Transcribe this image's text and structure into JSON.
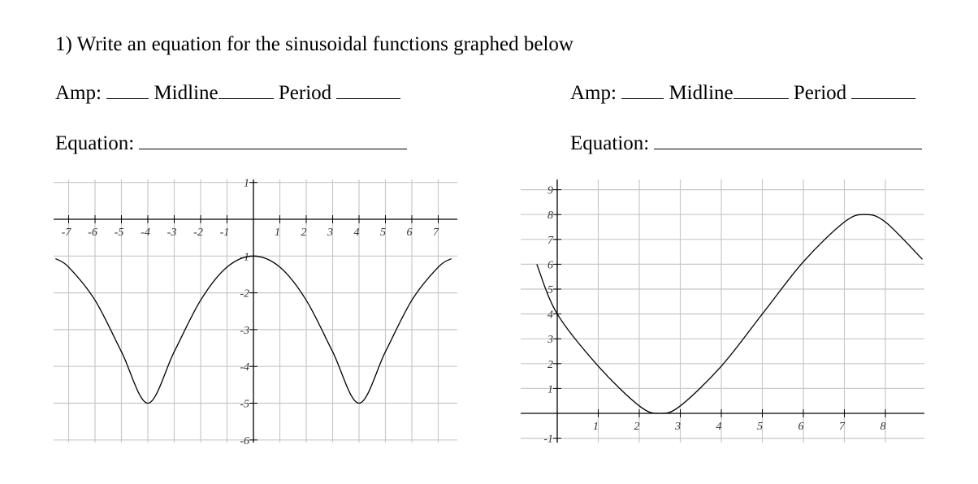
{
  "question": "1) Write an equation for the sinusoidal functions graphed below",
  "labels": {
    "amp": "Amp:",
    "midline": "Midline",
    "period": "Period",
    "equation": "Equation:"
  },
  "chart_data": [
    {
      "type": "line",
      "title": "",
      "xlabel": "",
      "ylabel": "",
      "xlim": [
        -7.6,
        7.6
      ],
      "ylim": [
        -6.2,
        1.3
      ],
      "grid": true,
      "x_ticks": [
        -7,
        -6,
        -5,
        -4,
        -3,
        -2,
        -1,
        1,
        2,
        3,
        4,
        5,
        6,
        7
      ],
      "y_ticks": [
        1,
        -1,
        -2,
        -3,
        -4,
        -5,
        -6
      ],
      "x_tick_labels": [
        "-7",
        "-6",
        "-5",
        "-4",
        "-3",
        "-2",
        "-1",
        "1",
        "2",
        "3",
        "4",
        "5",
        "6",
        "7"
      ],
      "y_tick_labels": [
        "1",
        "-1",
        "-2",
        "-3",
        "-4",
        "-5",
        "-6"
      ],
      "series": [
        {
          "x": [
            -7.5,
            -7,
            -6,
            -5,
            -4,
            -3,
            -2,
            -1,
            0,
            1,
            2,
            3,
            4,
            5,
            6,
            7,
            7.5
          ],
          "y": [
            -1.07,
            -1.3,
            -2.2,
            -3.6,
            -5.0,
            -3.6,
            -2.2,
            -1.3,
            -1.0,
            -1.3,
            -2.2,
            -3.6,
            -5.0,
            -3.6,
            -2.2,
            -1.3,
            -1.07
          ]
        }
      ]
    },
    {
      "type": "line",
      "title": "",
      "xlabel": "",
      "ylabel": "",
      "xlim": [
        -0.5,
        8.9
      ],
      "ylim": [
        -1.3,
        9.4
      ],
      "grid": true,
      "x_ticks": [
        1,
        2,
        3,
        4,
        5,
        6,
        7,
        8
      ],
      "y_ticks": [
        9,
        8,
        7,
        6,
        5,
        4,
        3,
        2,
        1,
        -1
      ],
      "x_tick_labels": [
        "1",
        "2",
        "3",
        "4",
        "5",
        "6",
        "7",
        "8"
      ],
      "y_tick_labels": [
        "9",
        "8",
        "7",
        "6",
        "5",
        "4",
        "3",
        "2",
        "1",
        "-1"
      ],
      "series": [
        {
          "x": [
            -0.5,
            0,
            1,
            2,
            2.5,
            3,
            4,
            5,
            6,
            7,
            7.5,
            8,
            8.9
          ],
          "y": [
            6.0,
            4.0,
            1.9,
            0.3,
            0.0,
            0.3,
            1.9,
            4.0,
            6.1,
            7.7,
            8.0,
            7.7,
            6.2
          ]
        }
      ]
    }
  ]
}
